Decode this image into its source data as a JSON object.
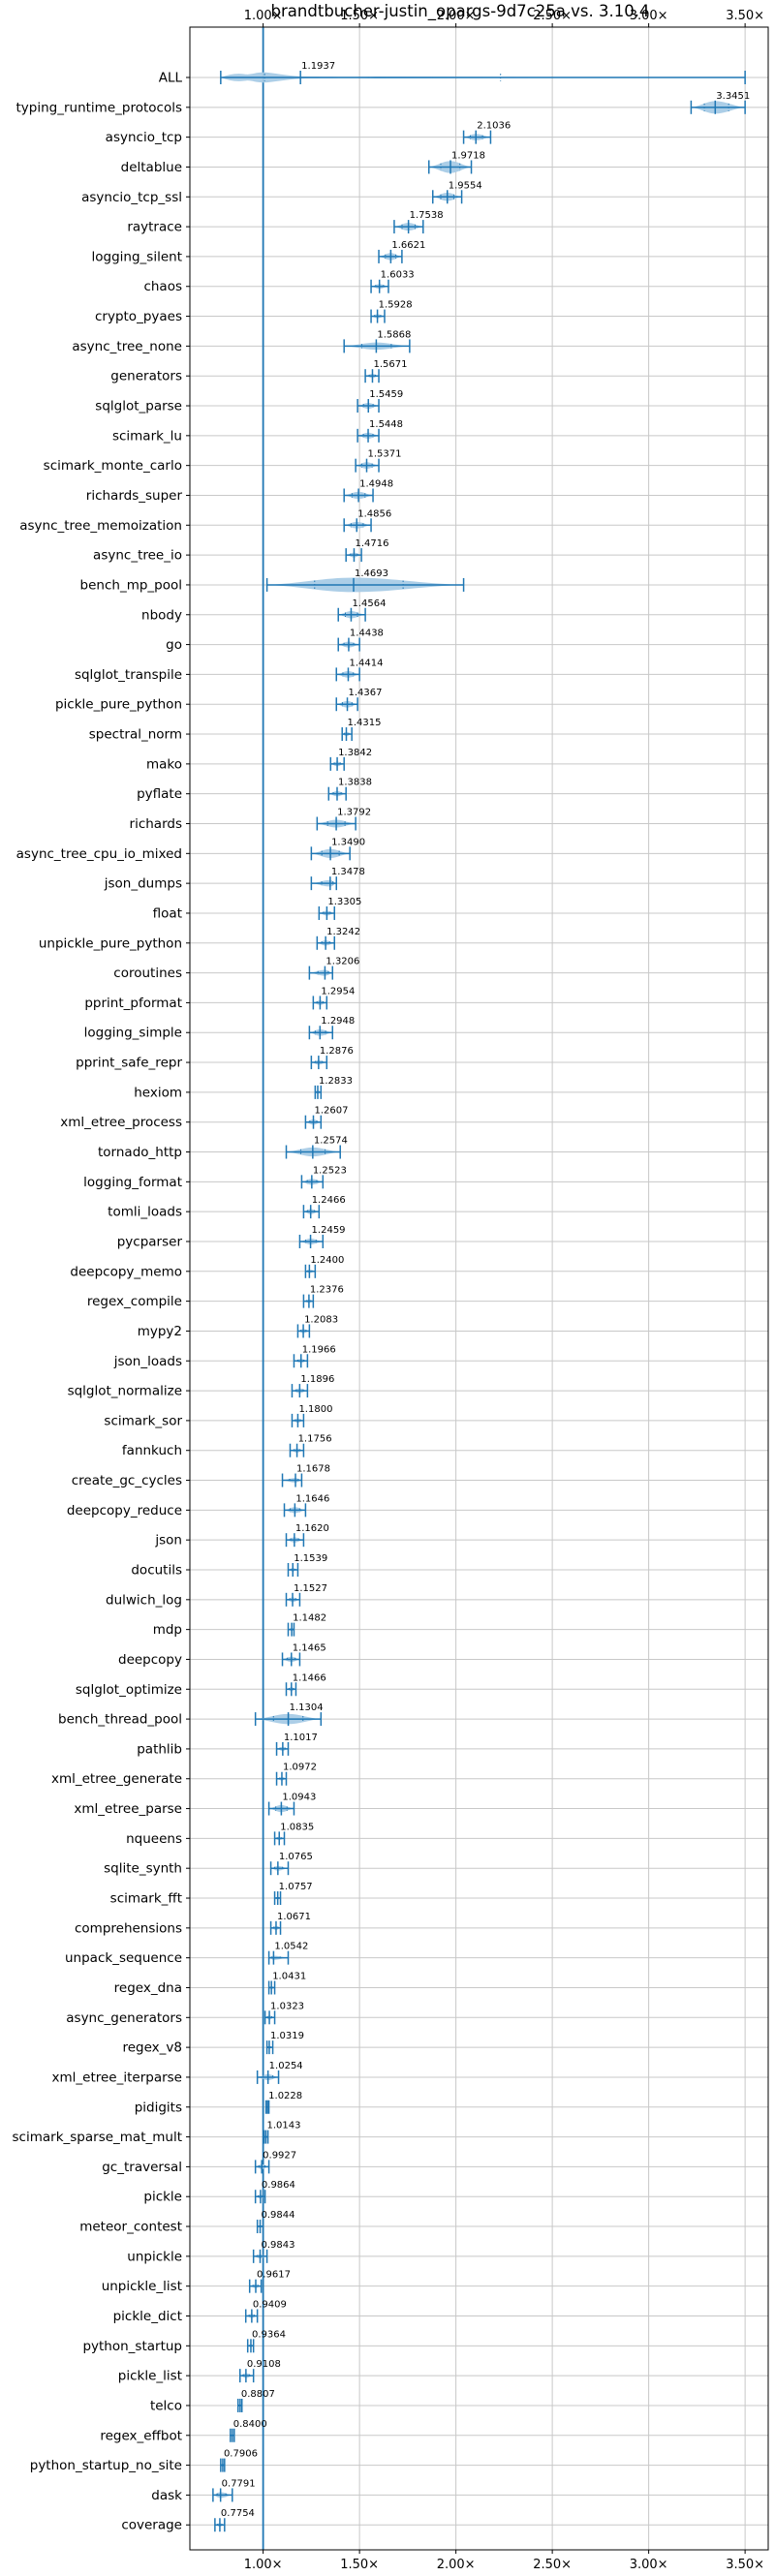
{
  "chart_data": {
    "type": "violin",
    "title": "brandtbucher-justin_opargs-9d7c25a vs. 3.10.4",
    "xlabel": "",
    "ylabel": "",
    "xlim": [
      0.62,
      3.62
    ],
    "reference_line": 1.0,
    "grid": true,
    "xticks": [
      {
        "value": 1.0,
        "label": "1.00×"
      },
      {
        "value": 1.5,
        "label": "1.50×"
      },
      {
        "value": 2.0,
        "label": "2.00×"
      },
      {
        "value": 2.5,
        "label": "2.50×"
      },
      {
        "value": 3.0,
        "label": "3.00×"
      },
      {
        "value": 3.5,
        "label": "3.50×"
      }
    ],
    "benchmarks": [
      {
        "name": "ALL",
        "mean": 1.1937,
        "min": 0.78,
        "max": 3.5,
        "width": 0.42,
        "lowmode": true
      },
      {
        "name": "typing_runtime_protocols",
        "mean": 3.3451,
        "min": 3.22,
        "max": 3.5,
        "width": 0.42
      },
      {
        "name": "asyncio_tcp",
        "mean": 2.1036,
        "min": 2.04,
        "max": 2.18,
        "width": 0.22
      },
      {
        "name": "deltablue",
        "mean": 1.9718,
        "min": 1.86,
        "max": 2.08,
        "width": 0.4
      },
      {
        "name": "asyncio_tcp_ssl",
        "mean": 1.9554,
        "min": 1.88,
        "max": 2.03,
        "width": 0.28
      },
      {
        "name": "raytrace",
        "mean": 1.7538,
        "min": 1.68,
        "max": 1.83,
        "width": 0.26
      },
      {
        "name": "logging_silent",
        "mean": 1.6621,
        "min": 1.6,
        "max": 1.72,
        "width": 0.24
      },
      {
        "name": "chaos",
        "mean": 1.6033,
        "min": 1.56,
        "max": 1.65,
        "width": 0.16
      },
      {
        "name": "crypto_pyaes",
        "mean": 1.5928,
        "min": 1.56,
        "max": 1.63,
        "width": 0.14
      },
      {
        "name": "async_tree_none",
        "mean": 1.5868,
        "min": 1.42,
        "max": 1.76,
        "width": 0.24
      },
      {
        "name": "generators",
        "mean": 1.5671,
        "min": 1.53,
        "max": 1.6,
        "width": 0.14
      },
      {
        "name": "sqlglot_parse",
        "mean": 1.5459,
        "min": 1.49,
        "max": 1.6,
        "width": 0.2
      },
      {
        "name": "scimark_lu",
        "mean": 1.5448,
        "min": 1.49,
        "max": 1.6,
        "width": 0.2
      },
      {
        "name": "scimark_monte_carlo",
        "mean": 1.5371,
        "min": 1.48,
        "max": 1.6,
        "width": 0.22
      },
      {
        "name": "richards_super",
        "mean": 1.4948,
        "min": 1.42,
        "max": 1.57,
        "width": 0.24
      },
      {
        "name": "async_tree_memoization",
        "mean": 1.4856,
        "min": 1.42,
        "max": 1.56,
        "width": 0.22
      },
      {
        "name": "async_tree_io",
        "mean": 1.4716,
        "min": 1.43,
        "max": 1.51,
        "width": 0.16
      },
      {
        "name": "bench_mp_pool",
        "mean": 1.4693,
        "min": 1.02,
        "max": 2.04,
        "width": 0.48
      },
      {
        "name": "nbody",
        "mean": 1.4564,
        "min": 1.39,
        "max": 1.53,
        "width": 0.24
      },
      {
        "name": "go",
        "mean": 1.4438,
        "min": 1.39,
        "max": 1.5,
        "width": 0.2
      },
      {
        "name": "sqlglot_transpile",
        "mean": 1.4414,
        "min": 1.38,
        "max": 1.5,
        "width": 0.22
      },
      {
        "name": "pickle_pure_python",
        "mean": 1.4367,
        "min": 1.38,
        "max": 1.49,
        "width": 0.22
      },
      {
        "name": "spectral_norm",
        "mean": 1.4315,
        "min": 1.41,
        "max": 1.46,
        "width": 0.14
      },
      {
        "name": "mako",
        "mean": 1.3842,
        "min": 1.35,
        "max": 1.42,
        "width": 0.16
      },
      {
        "name": "pyflate",
        "mean": 1.3838,
        "min": 1.34,
        "max": 1.43,
        "width": 0.18
      },
      {
        "name": "richards",
        "mean": 1.3792,
        "min": 1.28,
        "max": 1.48,
        "width": 0.26
      },
      {
        "name": "async_tree_cpu_io_mixed",
        "mean": 1.349,
        "min": 1.25,
        "max": 1.45,
        "width": 0.3
      },
      {
        "name": "json_dumps",
        "mean": 1.3478,
        "min": 1.25,
        "max": 1.38,
        "width": 0.22
      },
      {
        "name": "float",
        "mean": 1.3305,
        "min": 1.29,
        "max": 1.37,
        "width": 0.16
      },
      {
        "name": "unpickle_pure_python",
        "mean": 1.3242,
        "min": 1.28,
        "max": 1.37,
        "width": 0.18
      },
      {
        "name": "coroutines",
        "mean": 1.3206,
        "min": 1.24,
        "max": 1.36,
        "width": 0.2
      },
      {
        "name": "pprint_pformat",
        "mean": 1.2954,
        "min": 1.26,
        "max": 1.33,
        "width": 0.16
      },
      {
        "name": "logging_simple",
        "mean": 1.2948,
        "min": 1.24,
        "max": 1.36,
        "width": 0.22
      },
      {
        "name": "pprint_safe_repr",
        "mean": 1.2876,
        "min": 1.25,
        "max": 1.33,
        "width": 0.16
      },
      {
        "name": "hexiom",
        "mean": 1.2833,
        "min": 1.27,
        "max": 1.3,
        "width": 0.12
      },
      {
        "name": "xml_etree_process",
        "mean": 1.2607,
        "min": 1.22,
        "max": 1.3,
        "width": 0.18
      },
      {
        "name": "tornado_http",
        "mean": 1.2574,
        "min": 1.12,
        "max": 1.4,
        "width": 0.3
      },
      {
        "name": "logging_format",
        "mean": 1.2523,
        "min": 1.2,
        "max": 1.31,
        "width": 0.2
      },
      {
        "name": "tomli_loads",
        "mean": 1.2466,
        "min": 1.21,
        "max": 1.29,
        "width": 0.18
      },
      {
        "name": "pycparser",
        "mean": 1.2459,
        "min": 1.19,
        "max": 1.31,
        "width": 0.2
      },
      {
        "name": "deepcopy_memo",
        "mean": 1.24,
        "min": 1.22,
        "max": 1.27,
        "width": 0.12
      },
      {
        "name": "regex_compile",
        "mean": 1.2376,
        "min": 1.21,
        "max": 1.26,
        "width": 0.12
      },
      {
        "name": "mypy2",
        "mean": 1.2083,
        "min": 1.18,
        "max": 1.24,
        "width": 0.14
      },
      {
        "name": "json_loads",
        "mean": 1.1966,
        "min": 1.16,
        "max": 1.23,
        "width": 0.14
      },
      {
        "name": "sqlglot_normalize",
        "mean": 1.1896,
        "min": 1.15,
        "max": 1.23,
        "width": 0.16
      },
      {
        "name": "scimark_sor",
        "mean": 1.18,
        "min": 1.15,
        "max": 1.21,
        "width": 0.14
      },
      {
        "name": "fannkuch",
        "mean": 1.1756,
        "min": 1.14,
        "max": 1.21,
        "width": 0.14
      },
      {
        "name": "create_gc_cycles",
        "mean": 1.1678,
        "min": 1.1,
        "max": 1.2,
        "width": 0.16
      },
      {
        "name": "deepcopy_reduce",
        "mean": 1.1646,
        "min": 1.11,
        "max": 1.22,
        "width": 0.2
      },
      {
        "name": "json",
        "mean": 1.162,
        "min": 1.12,
        "max": 1.21,
        "width": 0.18
      },
      {
        "name": "docutils",
        "mean": 1.1539,
        "min": 1.13,
        "max": 1.18,
        "width": 0.12
      },
      {
        "name": "dulwich_log",
        "mean": 1.1527,
        "min": 1.12,
        "max": 1.19,
        "width": 0.16
      },
      {
        "name": "mdp",
        "mean": 1.1482,
        "min": 1.13,
        "max": 1.16,
        "width": 0.1
      },
      {
        "name": "deepcopy",
        "mean": 1.1465,
        "min": 1.1,
        "max": 1.19,
        "width": 0.18
      },
      {
        "name": "sqlglot_optimize",
        "mean": 1.1466,
        "min": 1.12,
        "max": 1.17,
        "width": 0.14
      },
      {
        "name": "bench_thread_pool",
        "mean": 1.1304,
        "min": 0.96,
        "max": 1.3,
        "width": 0.34
      },
      {
        "name": "pathlib",
        "mean": 1.1017,
        "min": 1.07,
        "max": 1.13,
        "width": 0.14
      },
      {
        "name": "xml_etree_generate",
        "mean": 1.0972,
        "min": 1.07,
        "max": 1.12,
        "width": 0.12
      },
      {
        "name": "xml_etree_parse",
        "mean": 1.0943,
        "min": 1.03,
        "max": 1.16,
        "width": 0.24
      },
      {
        "name": "nqueens",
        "mean": 1.0835,
        "min": 1.06,
        "max": 1.11,
        "width": 0.12
      },
      {
        "name": "sqlite_synth",
        "mean": 1.0765,
        "min": 1.04,
        "max": 1.13,
        "width": 0.16
      },
      {
        "name": "scimark_fft",
        "mean": 1.0757,
        "min": 1.06,
        "max": 1.09,
        "width": 0.1
      },
      {
        "name": "comprehensions",
        "mean": 1.0671,
        "min": 1.04,
        "max": 1.09,
        "width": 0.14
      },
      {
        "name": "unpack_sequence",
        "mean": 1.0542,
        "min": 1.03,
        "max": 1.13,
        "width": 0.14
      },
      {
        "name": "regex_dna",
        "mean": 1.0431,
        "min": 1.03,
        "max": 1.06,
        "width": 0.1
      },
      {
        "name": "async_generators",
        "mean": 1.0323,
        "min": 1.01,
        "max": 1.06,
        "width": 0.14
      },
      {
        "name": "regex_v8",
        "mean": 1.0319,
        "min": 1.02,
        "max": 1.05,
        "width": 0.1
      },
      {
        "name": "xml_etree_iterparse",
        "mean": 1.0254,
        "min": 0.97,
        "max": 1.08,
        "width": 0.2
      },
      {
        "name": "pidigits",
        "mean": 1.0228,
        "min": 1.015,
        "max": 1.03,
        "width": 0.08
      },
      {
        "name": "scimark_sparse_mat_mult",
        "mean": 1.0143,
        "min": 1.005,
        "max": 1.025,
        "width": 0.08
      },
      {
        "name": "gc_traversal",
        "mean": 0.9927,
        "min": 0.96,
        "max": 1.03,
        "width": 0.16
      },
      {
        "name": "pickle",
        "mean": 0.9864,
        "min": 0.96,
        "max": 1.01,
        "width": 0.14
      },
      {
        "name": "meteor_contest",
        "mean": 0.9844,
        "min": 0.97,
        "max": 1.0,
        "width": 0.1
      },
      {
        "name": "unpickle",
        "mean": 0.9843,
        "min": 0.95,
        "max": 1.02,
        "width": 0.14
      },
      {
        "name": "unpickle_list",
        "mean": 0.9617,
        "min": 0.93,
        "max": 0.99,
        "width": 0.14
      },
      {
        "name": "pickle_dict",
        "mean": 0.9409,
        "min": 0.91,
        "max": 0.97,
        "width": 0.14
      },
      {
        "name": "python_startup",
        "mean": 0.9364,
        "min": 0.92,
        "max": 0.95,
        "width": 0.1
      },
      {
        "name": "pickle_list",
        "mean": 0.9108,
        "min": 0.88,
        "max": 0.95,
        "width": 0.16
      },
      {
        "name": "telco",
        "mean": 0.8807,
        "min": 0.87,
        "max": 0.89,
        "width": 0.1
      },
      {
        "name": "regex_effbot",
        "mean": 0.84,
        "min": 0.83,
        "max": 0.85,
        "width": 0.08
      },
      {
        "name": "python_startup_no_site",
        "mean": 0.7906,
        "min": 0.78,
        "max": 0.8,
        "width": 0.1
      },
      {
        "name": "dask",
        "mean": 0.7791,
        "min": 0.74,
        "max": 0.84,
        "width": 0.2
      },
      {
        "name": "coverage",
        "mean": 0.7754,
        "min": 0.75,
        "max": 0.8,
        "width": 0.12
      }
    ],
    "colors": {
      "violin_fill": "#a8cbe6",
      "line": "#1f77b4",
      "grid": "#c8c8c8",
      "axis": "#000000"
    }
  }
}
